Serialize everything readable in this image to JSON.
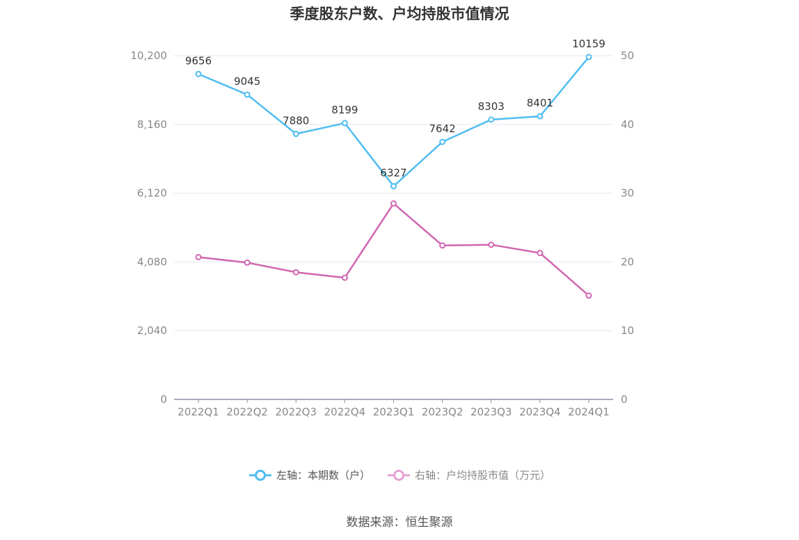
{
  "title": "季度股东户数、户均持股市值情况",
  "source": "数据来源：恒生聚源",
  "colors": {
    "left": "#4fbdf0",
    "right": "#d066b0",
    "grid": "#e3e6ef",
    "axis": "#8a8fa8"
  },
  "legend": [
    {
      "label": "左轴：本期数（户）",
      "color": "#4fbdf0"
    },
    {
      "label": "右轴：户均持股市值（万元）",
      "color": "#e4a3d2"
    }
  ],
  "chart_data": {
    "type": "line",
    "categories": [
      "2022Q1",
      "2022Q2",
      "2022Q3",
      "2022Q4",
      "2023Q1",
      "2023Q2",
      "2023Q3",
      "2023Q4",
      "2024Q1"
    ],
    "y_left": {
      "min": 0,
      "max": 10200,
      "ticks": [
        "0",
        "2,040",
        "4,080",
        "6,120",
        "8,160",
        "10,200"
      ],
      "tick_values": [
        0,
        2040,
        4080,
        6120,
        8160,
        10200
      ]
    },
    "y_right": {
      "min": 0,
      "max": 50,
      "ticks": [
        "0",
        "10",
        "20",
        "30",
        "40",
        "50"
      ],
      "tick_values": [
        0,
        10,
        20,
        30,
        40,
        50
      ]
    },
    "series": [
      {
        "name": "左轴：本期数（户）",
        "axis": "left",
        "values": [
          9656,
          9045,
          7880,
          8199,
          6327,
          7642,
          8303,
          8401,
          10159
        ],
        "labels": [
          "9656",
          "9045",
          "7880",
          "8199",
          "6327",
          "7642",
          "8303",
          "8401",
          "10159"
        ]
      },
      {
        "name": "右轴：户均持股市值（万元）",
        "axis": "right",
        "values": [
          20.7,
          19.9,
          18.5,
          17.7,
          28.5,
          22.4,
          22.5,
          21.3,
          15.1
        ]
      }
    ],
    "grid": true,
    "legend_position": "bottom"
  }
}
